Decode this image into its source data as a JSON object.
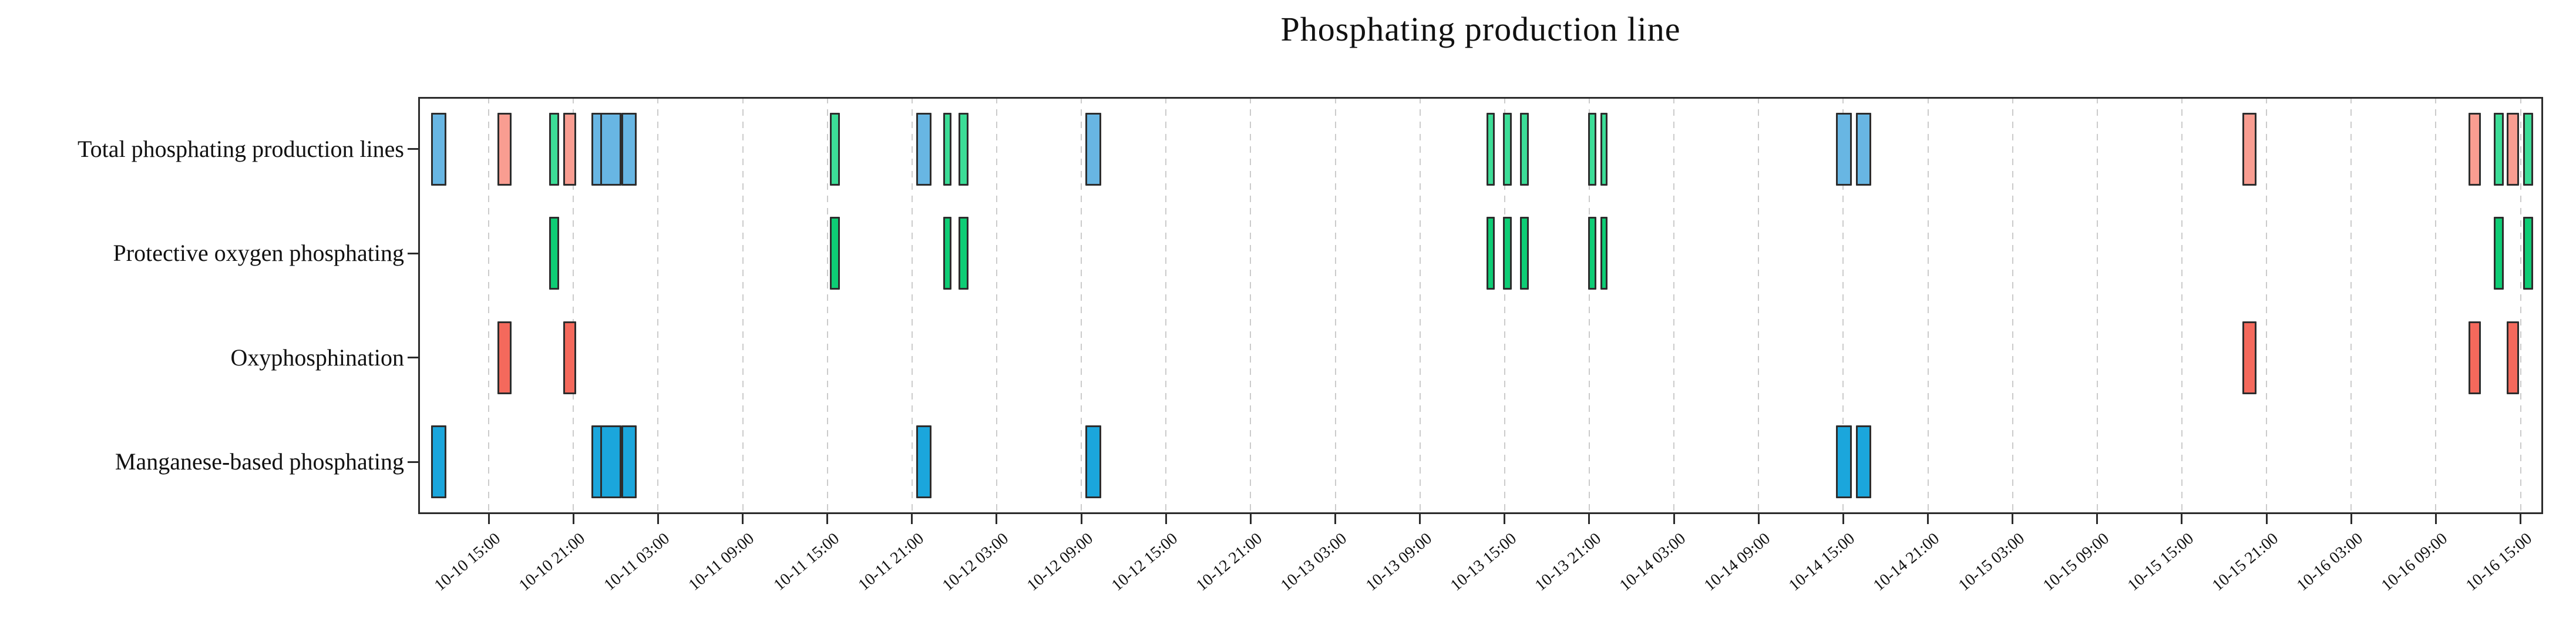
{
  "page_title": "Phosphating production line",
  "chart_data": {
    "type": "gantt",
    "title": "Phosphating production line",
    "time_reference": "hours since 10-10 00:00",
    "axis": {
      "xmin_h": 10.0,
      "xmax_h": 160.6,
      "tick_first_h": 15,
      "tick_step_h": 6,
      "tick_count": 25,
      "grid": "vertical-dashed",
      "tick_label_rotation_deg": 40
    },
    "x_tick_labels": [
      "10-10 15:00",
      "10-10 21:00",
      "10-11 03:00",
      "10-11 09:00",
      "10-11 15:00",
      "10-11 21:00",
      "10-12 03:00",
      "10-12 09:00",
      "10-12 15:00",
      "10-12 21:00",
      "10-13 03:00",
      "10-13 09:00",
      "10-13 15:00",
      "10-13 21:00",
      "10-14 03:00",
      "10-14 09:00",
      "10-14 15:00",
      "10-14 21:00",
      "10-15 03:00",
      "10-15 09:00",
      "10-15 15:00",
      "10-15 21:00",
      "10-16 03:00",
      "10-16 09:00",
      "10-16 15:00"
    ],
    "rows": [
      {
        "key": "total",
        "label": "Total phosphating production lines"
      },
      {
        "key": "protective",
        "label": "Protective oxygen phosphating"
      },
      {
        "key": "oxyphosphination",
        "label": "Oxyphosphination"
      },
      {
        "key": "manganese",
        "label": "Manganese-based phosphating"
      }
    ],
    "events": {
      "manganese": [
        [
          10.9,
          12.0
        ],
        [
          22.3,
          24.4
        ],
        [
          22.9,
          24.4
        ],
        [
          24.4,
          25.5
        ],
        [
          45.3,
          46.4
        ],
        [
          57.3,
          58.4
        ],
        [
          110.5,
          111.6
        ],
        [
          111.9,
          113.0
        ]
      ],
      "oxyphosphination": [
        [
          15.6,
          16.6
        ],
        [
          20.3,
          21.2
        ],
        [
          139.3,
          140.3
        ],
        [
          155.3,
          156.2
        ],
        [
          158.0,
          158.9
        ]
      ],
      "protective": [
        [
          19.3,
          20.0
        ],
        [
          39.2,
          39.9
        ],
        [
          47.2,
          47.8
        ],
        [
          48.3,
          49.0
        ],
        [
          85.7,
          86.3
        ],
        [
          86.9,
          87.5
        ],
        [
          88.1,
          88.7
        ],
        [
          92.9,
          93.5
        ],
        [
          93.8,
          94.3
        ],
        [
          157.1,
          157.8
        ],
        [
          159.2,
          159.9
        ]
      ]
    },
    "colors": {
      "manganese": "#1ba6dc",
      "oxyphosphination": "#f4695c",
      "protective": "#0ecd75",
      "total_manganese": "#68b6e3",
      "total_oxyphosphination": "#f99d91",
      "total_protective": "#3cdd97",
      "bar_border": "#2d2d2d",
      "grid": "#cbcbcb",
      "axis": "#2b2b2b",
      "text": "#111111"
    }
  }
}
